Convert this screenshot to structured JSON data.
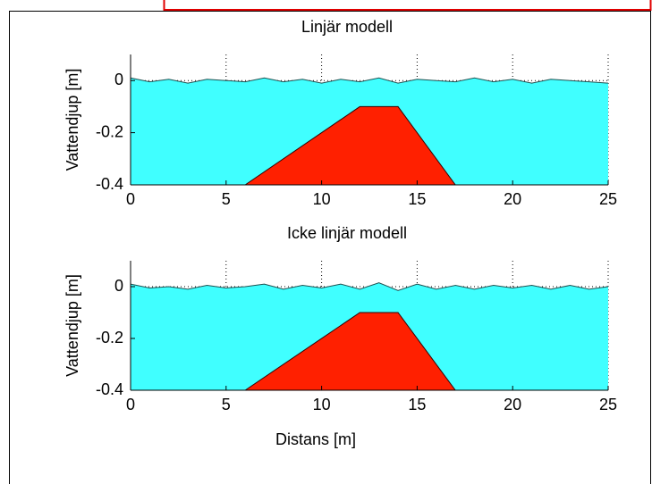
{
  "chart_data": [
    {
      "type": "wave",
      "title": "Linjär modell",
      "ylabel": "Vattendjup [m]",
      "x": [
        0,
        1,
        2,
        3,
        4,
        5,
        6,
        7,
        8,
        9,
        10,
        11,
        12,
        13,
        14,
        15,
        16,
        17,
        18,
        19,
        20,
        21,
        22,
        23,
        24,
        25
      ],
      "series": [
        {
          "color": "#40ffff",
          "values": [
            0.01,
            -0.005,
            0.005,
            -0.01,
            0.005,
            0,
            -0.005,
            0.01,
            -0.005,
            0.005,
            -0.01,
            0.005,
            -0.005,
            0.01,
            -0.01,
            0.005,
            0,
            -0.005,
            0.01,
            -0.005,
            0.005,
            -0.01,
            0.005,
            0,
            -0.005,
            -0.01
          ]
        }
      ],
      "obstacle": {
        "color": "#ff2000",
        "x": [
          6,
          12,
          14,
          17
        ],
        "y": [
          -0.4,
          -0.1,
          -0.1,
          -0.4
        ]
      },
      "xlim": [
        0,
        25
      ],
      "xticks": [
        0,
        5,
        10,
        15,
        20,
        25
      ],
      "ylim": [
        -0.4,
        0.1
      ],
      "yticks": [
        -0.4,
        -0.2,
        0
      ],
      "grid": true
    },
    {
      "type": "wave",
      "title": "Icke linjär modell",
      "ylabel": "Vattendjup [m]",
      "xlabel": "Distans [m]",
      "x": [
        0,
        1,
        2,
        3,
        4,
        5,
        6,
        7,
        8,
        9,
        10,
        11,
        12,
        13,
        14,
        15,
        16,
        17,
        18,
        19,
        20,
        21,
        22,
        23,
        24,
        25
      ],
      "series": [
        {
          "color": "#40ffff",
          "values": [
            0.01,
            -0.005,
            0,
            -0.01,
            0.005,
            -0.005,
            0,
            0.01,
            -0.01,
            0.005,
            -0.005,
            0.01,
            -0.01,
            0.015,
            -0.015,
            0.01,
            -0.01,
            0.005,
            -0.01,
            0.005,
            -0.005,
            0.005,
            -0.01,
            0.005,
            -0.01,
            0
          ]
        }
      ],
      "obstacle": {
        "color": "#ff2000",
        "x": [
          6,
          12,
          14,
          17
        ],
        "y": [
          -0.4,
          -0.1,
          -0.1,
          -0.4
        ]
      },
      "xlim": [
        0,
        25
      ],
      "xticks": [
        0,
        5,
        10,
        15,
        20,
        25
      ],
      "ylim": [
        -0.4,
        0.1
      ],
      "yticks": [
        -0.4,
        -0.2,
        0
      ],
      "grid": true
    }
  ]
}
